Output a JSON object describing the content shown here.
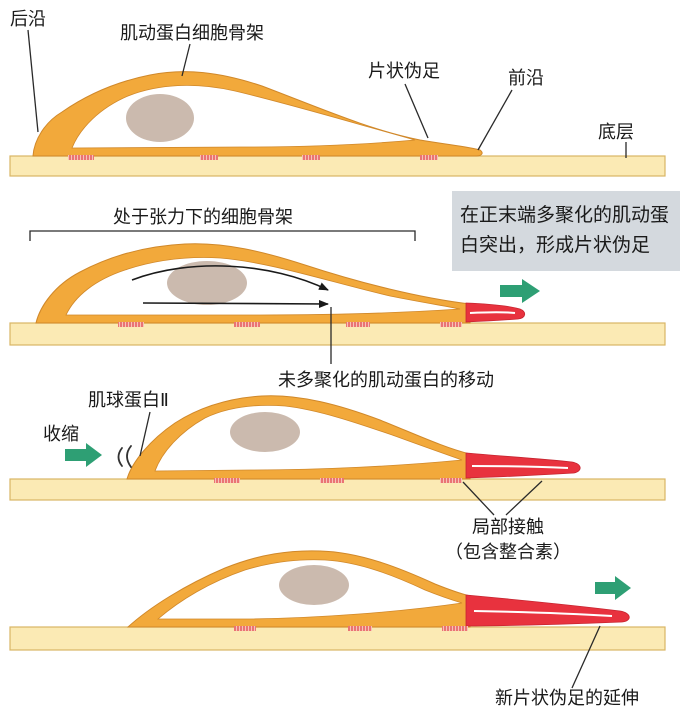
{
  "colors": {
    "cell_body": "#F2A93B",
    "cell_edge": "#D0882A",
    "cytoplasm": "#FFFFFF",
    "nucleus": "#CBBAAE",
    "substrate": "#FBEAB4",
    "substrate_edge": "#D9B665",
    "polymerized_actin": "#E8323E",
    "arrow_green": "#2E9F74",
    "callout_bg": "#D4D9DE",
    "text": "#1A1A1A"
  },
  "panel1": {
    "trailing_edge": "后沿",
    "actin_cytoskeleton": "肌动蛋白细胞骨架",
    "lamellipodium": "片状伪足",
    "leading_edge": "前沿",
    "substrate": "底层"
  },
  "panel2": {
    "cytoskeleton_under_tension": "处于张力下的细胞骨架",
    "callout_line1": "在正末端多聚化的肌动蛋",
    "callout_line2": "白突出，形成片状伪足",
    "unpolymerized_actin_movement": "未多聚化的肌动蛋白的移动"
  },
  "panel3": {
    "myosin": "肌球蛋白Ⅱ",
    "contraction": "收缩",
    "focal_contacts": "局部接触",
    "focal_contacts_note": "（包含整合素）"
  },
  "panel4": {
    "new_lamellipodium_extension": "新片状伪足的延伸"
  }
}
